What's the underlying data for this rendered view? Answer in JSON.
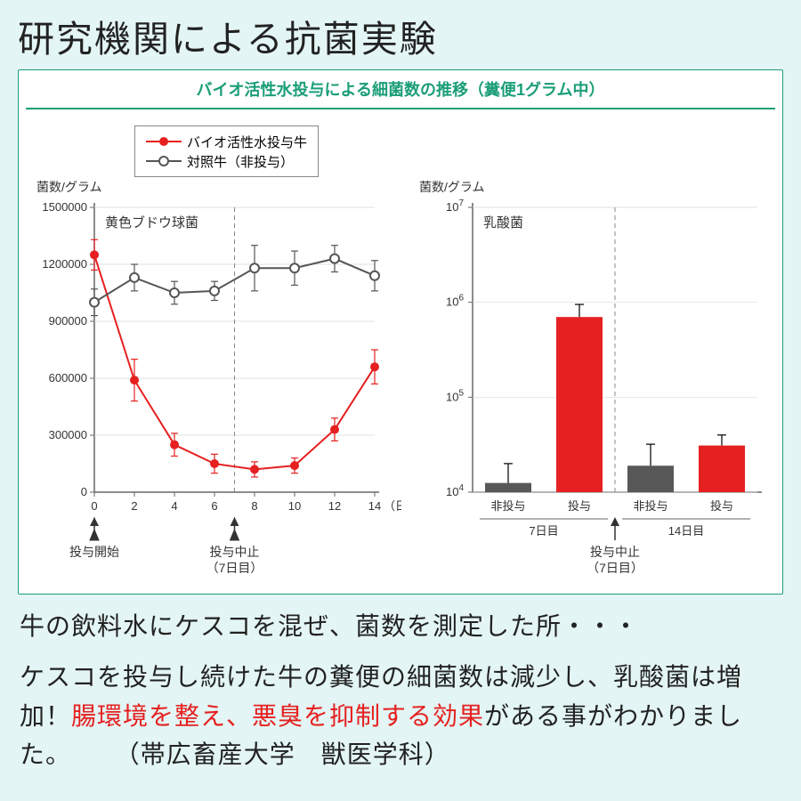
{
  "page": {
    "background_color": "#e3f5f4",
    "title": "研究機関による抗菌実験"
  },
  "panel": {
    "background_color": "#ffffff",
    "border_color": "#1b9e77",
    "title": "バイオ活性水投与による細菌数の推移（糞便1グラム中）",
    "title_color": "#1b9e77"
  },
  "legend": {
    "items": [
      {
        "label": "バイオ活性水投与牛",
        "color": "#e62020",
        "marker": "filled"
      },
      {
        "label": "対照牛（非投与）",
        "color": "#555555",
        "marker": "open"
      }
    ]
  },
  "line_chart": {
    "type": "line",
    "y_axis_label": "菌数/グラム",
    "x_axis_label": "（日数）",
    "inner_title": "黄色ブドウ球菌",
    "xlim": [
      0,
      14
    ],
    "ylim": [
      0,
      1500000
    ],
    "xtick_step": 2,
    "yticks": [
      0,
      300000,
      600000,
      900000,
      1200000,
      1500000
    ],
    "vline_at": 7,
    "vline_style": "dashed",
    "vline_color": "#888888",
    "axis_color": "#666666",
    "grid_color": "#d9d9d9",
    "series": [
      {
        "name": "バイオ活性水投与牛",
        "color": "#e62020",
        "marker": "filled-circle",
        "line_width": 2,
        "x": [
          0,
          2,
          4,
          6,
          8,
          10,
          12,
          14
        ],
        "y": [
          1250000,
          590000,
          250000,
          150000,
          120000,
          140000,
          330000,
          660000
        ],
        "err": [
          80000,
          110000,
          60000,
          50000,
          40000,
          40000,
          60000,
          90000
        ]
      },
      {
        "name": "対照牛（非投与）",
        "color": "#555555",
        "marker": "open-circle",
        "line_width": 2,
        "x": [
          0,
          2,
          4,
          6,
          8,
          10,
          12,
          14
        ],
        "y": [
          1000000,
          1130000,
          1050000,
          1060000,
          1180000,
          1180000,
          1230000,
          1140000
        ],
        "err": [
          70000,
          70000,
          60000,
          50000,
          120000,
          90000,
          70000,
          80000
        ]
      }
    ],
    "x_annotations": [
      {
        "at": 0,
        "lines": [
          "投与開始"
        ]
      },
      {
        "at": 7,
        "lines": [
          "投与中止",
          "（7日目）"
        ]
      }
    ]
  },
  "bar_chart": {
    "type": "bar-log",
    "y_axis_label": "菌数/グラム",
    "inner_title": "乳酸菌",
    "ylim_exp": [
      4,
      7
    ],
    "ytick_exp": [
      4,
      5,
      6,
      7
    ],
    "vline_at_index": 2,
    "vline_style": "dashed",
    "vline_color": "#888888",
    "axis_color": "#666666",
    "grid_color": "#d9d9d9",
    "bar_width": 0.65,
    "bars": [
      {
        "group": "7日目",
        "label": "非投与",
        "value": 12500,
        "err_up": 7500,
        "color": "#585858"
      },
      {
        "group": "7日目",
        "label": "投与",
        "value": 700000,
        "err_up": 250000,
        "color": "#e62020"
      },
      {
        "group": "14日目",
        "label": "非投与",
        "value": 19000,
        "err_up": 13000,
        "color": "#585858"
      },
      {
        "group": "14日目",
        "label": "投与",
        "value": 31000,
        "err_up": 9000,
        "color": "#e62020"
      }
    ],
    "group_labels": [
      "7日目",
      "14日目"
    ],
    "x_annotations": [
      {
        "at_divider": true,
        "lines": [
          "投与中止",
          "（7日目）"
        ]
      }
    ]
  },
  "caption": {
    "line1": "牛の飲料水にケスコを混ぜ、菌数を測定した所・・・",
    "line2a": "ケスコを投与し続けた牛の糞便の細菌数は減少し、乳酸菌は増加！",
    "line2b_red": "腸環境を整え、悪臭を抑制する効果",
    "line2c": "がある事がわかりました。",
    "credit": "（帯広畜産大学　獣医学科）",
    "red_color": "#e62020"
  }
}
